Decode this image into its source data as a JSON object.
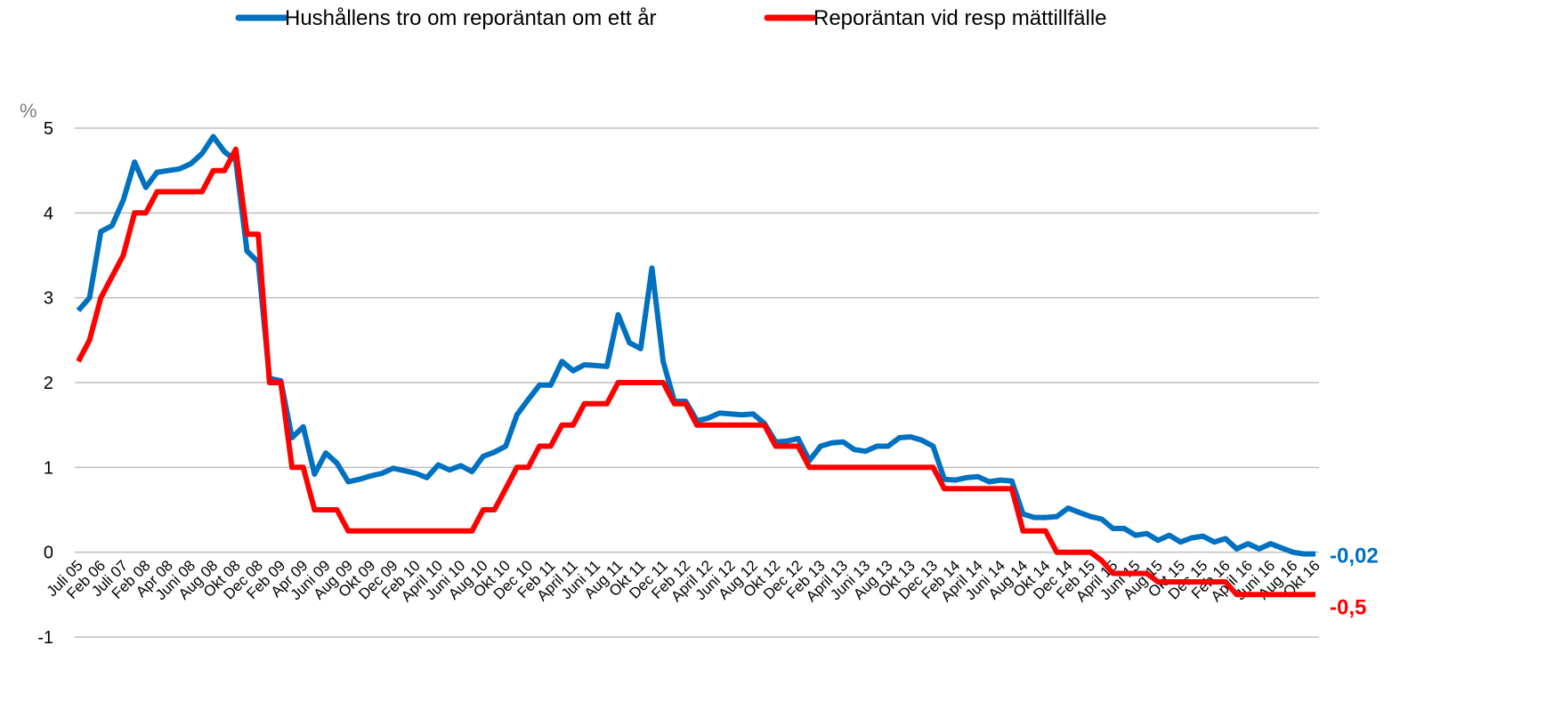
{
  "chart_data": {
    "type": "line",
    "y_unit": "%",
    "categories": [
      "Juli 05",
      null,
      "Feb 06",
      null,
      "Juli 07",
      null,
      "Feb 08",
      null,
      "Apr 08",
      null,
      "Juni 08",
      null,
      "Aug 08",
      null,
      "Okt 08",
      null,
      "Dec 08",
      null,
      "Feb 09",
      null,
      "Apr 09",
      null,
      "Juni 09",
      null,
      "Aug 09",
      null,
      "Okt 09",
      null,
      "Dec 09",
      null,
      "Feb 10",
      null,
      "April 10",
      null,
      "Juni 10",
      null,
      "Aug 10",
      null,
      "Okt 10",
      null,
      "Dec 10",
      null,
      "Feb 11",
      null,
      "April 11",
      null,
      "Juni 11",
      null,
      "Aug 11",
      null,
      "Okt 11",
      null,
      "Dec 11",
      null,
      "Feb 12",
      null,
      "April 12",
      null,
      "Juni 12",
      null,
      "Aug 12",
      null,
      "Okt 12",
      null,
      "Dec 12",
      null,
      "Feb 13",
      null,
      "April 13",
      null,
      "Juni 13",
      null,
      "Aug 13",
      null,
      "Okt 13",
      null,
      "Dec 13",
      null,
      "Feb 14",
      null,
      "April 14",
      null,
      "Juni 14",
      null,
      "Aug 14",
      null,
      "Okt 14",
      null,
      "Dec 14",
      null,
      "Feb 15",
      null,
      "April 15",
      null,
      "Juni 15",
      null,
      "Aug 15",
      null,
      "Okt 15",
      null,
      "Dec 15",
      null,
      "Feb 16",
      null,
      "April 16",
      null,
      "Juni 16",
      null,
      "Aug 16",
      null,
      "Okt 16"
    ],
    "series": [
      {
        "name": "Hushållens tro om reporäntan om ett år",
        "color": "#0070c0",
        "values": [
          2.85,
          3.0,
          3.78,
          3.85,
          4.15,
          4.6,
          4.3,
          4.48,
          4.5,
          4.52,
          4.58,
          4.7,
          4.9,
          4.72,
          4.62,
          3.55,
          3.42,
          2.05,
          2.02,
          1.35,
          1.48,
          0.92,
          1.17,
          1.05,
          0.83,
          0.86,
          0.9,
          0.93,
          0.99,
          0.96,
          0.93,
          0.88,
          1.03,
          0.97,
          1.02,
          0.95,
          1.13,
          1.18,
          1.25,
          1.62,
          1.8,
          1.97,
          1.97,
          2.25,
          2.14,
          2.21,
          2.2,
          2.19,
          2.8,
          2.47,
          2.4,
          3.35,
          2.25,
          1.78,
          1.78,
          1.55,
          1.58,
          1.64,
          1.63,
          1.62,
          1.63,
          1.52,
          1.3,
          1.31,
          1.34,
          1.08,
          1.25,
          1.29,
          1.3,
          1.21,
          1.19,
          1.25,
          1.25,
          1.35,
          1.36,
          1.32,
          1.25,
          0.86,
          0.85,
          0.88,
          0.89,
          0.83,
          0.85,
          0.84,
          0.45,
          0.41,
          0.41,
          0.42,
          0.52,
          0.47,
          0.42,
          0.39,
          0.28,
          0.28,
          0.2,
          0.22,
          0.14,
          0.2,
          0.12,
          0.17,
          0.19,
          0.12,
          0.16,
          0.04,
          0.1,
          0.04,
          0.1,
          0.05,
          0.0,
          -0.02,
          -0.02
        ],
        "value_labels": [
          null,
          null,
          null,
          null,
          null,
          null,
          null,
          null,
          null,
          null,
          null,
          null,
          null,
          null,
          null,
          null,
          null,
          null,
          null,
          null,
          null,
          null,
          null,
          null,
          null,
          null,
          null,
          null,
          null,
          null,
          null,
          null,
          null,
          null,
          null,
          null,
          null,
          null,
          null,
          null,
          null,
          null,
          null,
          null,
          null,
          null,
          null,
          null,
          null,
          null,
          null,
          null,
          null,
          null,
          null,
          null,
          null,
          null,
          null,
          null,
          null,
          null,
          null,
          null,
          null,
          null,
          null,
          null,
          null,
          null,
          null,
          null,
          null,
          null,
          null,
          null,
          null,
          null,
          null,
          null,
          null,
          null,
          null,
          null,
          null,
          null,
          null,
          null,
          null,
          null,
          null,
          null,
          null,
          null,
          null,
          null,
          null,
          null,
          null,
          null,
          null,
          null,
          null,
          null,
          null,
          null,
          null,
          null,
          null,
          null,
          "-0,02"
        ]
      },
      {
        "name": "Reporäntan vid resp mättillfälle",
        "color": "#ff0000",
        "values": [
          2.25,
          2.5,
          3.0,
          3.25,
          3.5,
          4.0,
          4.0,
          4.25,
          4.25,
          4.25,
          4.25,
          4.25,
          4.5,
          4.5,
          4.75,
          3.75,
          3.75,
          2.0,
          2.0,
          1.0,
          1.0,
          0.5,
          0.5,
          0.5,
          0.25,
          0.25,
          0.25,
          0.25,
          0.25,
          0.25,
          0.25,
          0.25,
          0.25,
          0.25,
          0.25,
          0.25,
          0.5,
          0.5,
          0.75,
          1.0,
          1.0,
          1.25,
          1.25,
          1.5,
          1.5,
          1.75,
          1.75,
          1.75,
          2.0,
          2.0,
          2.0,
          2.0,
          2.0,
          1.75,
          1.75,
          1.5,
          1.5,
          1.5,
          1.5,
          1.5,
          1.5,
          1.5,
          1.25,
          1.25,
          1.25,
          1.0,
          1.0,
          1.0,
          1.0,
          1.0,
          1.0,
          1.0,
          1.0,
          1.0,
          1.0,
          1.0,
          1.0,
          0.75,
          0.75,
          0.75,
          0.75,
          0.75,
          0.75,
          0.75,
          0.25,
          0.25,
          0.25,
          0.0,
          0.0,
          0.0,
          0.0,
          -0.1,
          -0.25,
          -0.25,
          -0.25,
          -0.25,
          -0.35,
          -0.35,
          -0.35,
          -0.35,
          -0.35,
          -0.35,
          -0.35,
          -0.5,
          -0.5,
          -0.5,
          -0.5,
          -0.5,
          -0.5,
          -0.5,
          -0.5
        ],
        "value_labels": [
          null,
          null,
          null,
          null,
          null,
          null,
          null,
          null,
          null,
          null,
          null,
          null,
          null,
          null,
          null,
          null,
          null,
          null,
          null,
          null,
          null,
          null,
          null,
          null,
          null,
          null,
          null,
          null,
          null,
          null,
          null,
          null,
          null,
          null,
          null,
          null,
          null,
          null,
          null,
          null,
          null,
          null,
          null,
          null,
          null,
          null,
          null,
          null,
          null,
          null,
          null,
          null,
          null,
          null,
          null,
          null,
          null,
          null,
          null,
          null,
          null,
          null,
          null,
          null,
          null,
          null,
          null,
          null,
          null,
          null,
          null,
          null,
          null,
          null,
          null,
          null,
          null,
          null,
          null,
          null,
          null,
          null,
          null,
          null,
          null,
          null,
          null,
          null,
          null,
          null,
          null,
          null,
          null,
          null,
          null,
          null,
          null,
          null,
          null,
          null,
          null,
          null,
          null,
          null,
          null,
          null,
          null,
          null,
          null,
          null,
          "-0,5"
        ]
      }
    ],
    "ylim": [
      -1,
      5
    ],
    "yticks": [
      -1,
      0,
      1,
      2,
      3,
      4,
      5
    ],
    "grid": true,
    "legend": "top"
  }
}
